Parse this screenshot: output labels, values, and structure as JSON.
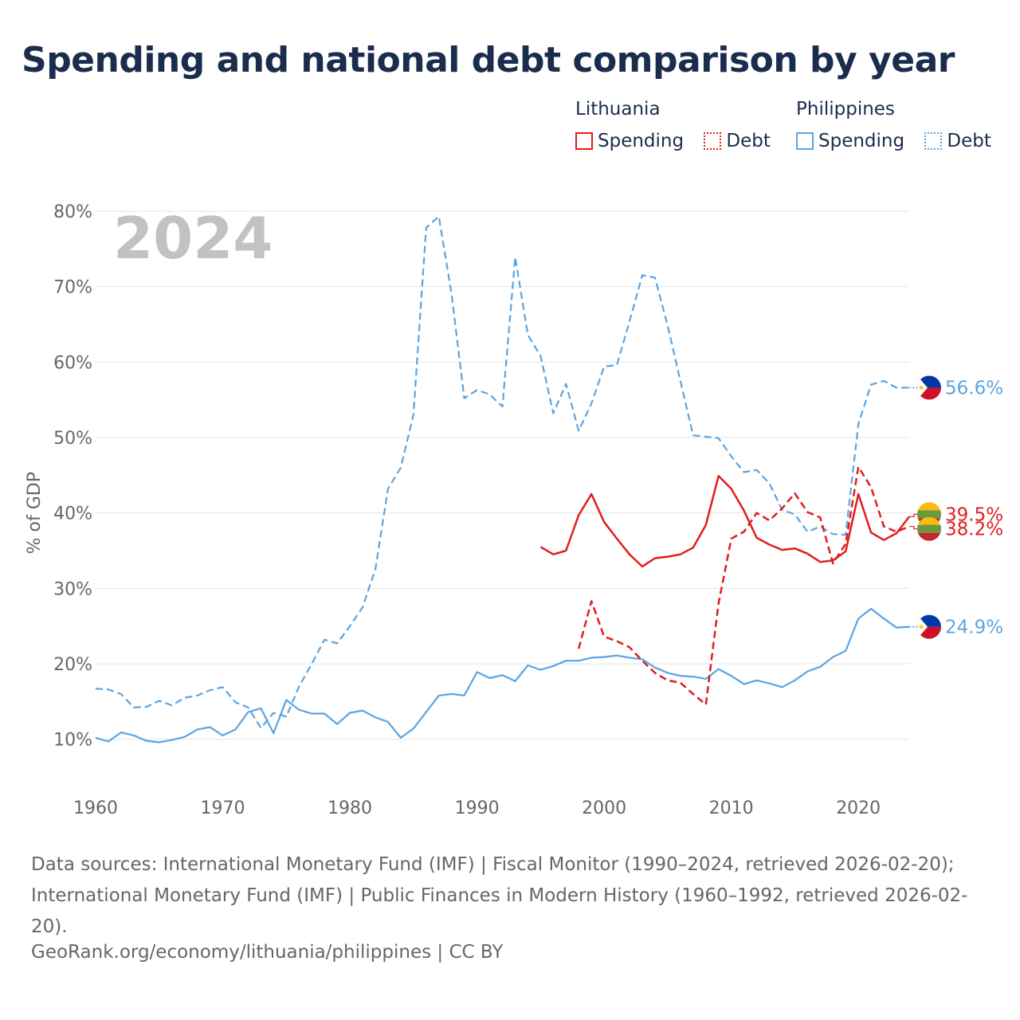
{
  "title": "Spending and national debt comparison by year",
  "legend": {
    "groups": [
      {
        "name": "Lithuania",
        "items": [
          {
            "label": "Spending",
            "style": "solid",
            "color": "#e01e1e"
          },
          {
            "label": "Debt",
            "style": "dashed",
            "color": "#e01e1e"
          }
        ]
      },
      {
        "name": "Philippines",
        "items": [
          {
            "label": "Spending",
            "style": "solid",
            "color": "#5aa4e2"
          },
          {
            "label": "Debt",
            "style": "dashed",
            "color": "#5aa4e2"
          }
        ]
      }
    ]
  },
  "chart_data": {
    "type": "line",
    "year_label": "2024",
    "ylabel": "% of GDP",
    "xlim": [
      1960,
      2024
    ],
    "ylim": [
      5,
      80
    ],
    "x_ticks": [
      "1960",
      "1970",
      "1980",
      "1990",
      "2000",
      "2010",
      "2020"
    ],
    "y_ticks": [
      "10%",
      "20%",
      "30%",
      "40%",
      "50%",
      "60%",
      "70%",
      "80%"
    ],
    "grid": true,
    "series": [
      {
        "name": "Philippines Debt",
        "country": "Philippines",
        "metric": "Debt",
        "style": "dashed",
        "color": "#5aa4e2",
        "start_year": 1960,
        "values": [
          16.7,
          16.6,
          16.0,
          14.2,
          14.3,
          15.1,
          14.5,
          15.5,
          15.8,
          16.5,
          16.9,
          14.9,
          14.2,
          11.5,
          13.5,
          13.0,
          17.0,
          20.0,
          23.2,
          22.7,
          25.0,
          27.5,
          32.5,
          43.2,
          46.0,
          53.0,
          77.8,
          79.3,
          69.0,
          55.2,
          56.3,
          55.7,
          54.1,
          73.9,
          63.6,
          60.8,
          53.2,
          57.1,
          50.9,
          54.5,
          59.4,
          59.6,
          65.4,
          71.5,
          71.2,
          64.8,
          57.5,
          50.3,
          50.1,
          49.9,
          47.5,
          45.4,
          45.7,
          43.9,
          40.4,
          39.8,
          37.5,
          38.2,
          37.2,
          37.1,
          51.8,
          57.0,
          57.5,
          56.6,
          56.6
        ]
      },
      {
        "name": "Philippines Spending",
        "country": "Philippines",
        "metric": "Spending",
        "style": "solid",
        "color": "#5aa4e2",
        "start_year": 1960,
        "values": [
          10.2,
          9.7,
          10.9,
          10.5,
          9.8,
          9.6,
          9.9,
          10.3,
          11.3,
          11.6,
          10.5,
          11.3,
          13.6,
          14.1,
          10.8,
          15.2,
          13.9,
          13.4,
          13.4,
          12.0,
          13.5,
          13.8,
          12.9,
          12.3,
          10.2,
          11.4,
          13.6,
          15.8,
          16.0,
          15.8,
          18.9,
          18.1,
          18.5,
          17.7,
          19.8,
          19.2,
          19.7,
          20.4,
          20.4,
          20.8,
          20.9,
          21.1,
          20.8,
          20.6,
          19.5,
          18.8,
          18.4,
          18.3,
          18.0,
          19.3,
          18.4,
          17.3,
          17.8,
          17.4,
          16.9,
          17.8,
          19.0,
          19.6,
          20.9,
          21.7,
          26.0,
          27.3,
          26.0,
          24.8,
          24.9
        ]
      },
      {
        "name": "Lithuania Spending",
        "country": "Lithuania",
        "metric": "Spending",
        "style": "solid",
        "color": "#e01e1e",
        "start_year": 1995,
        "values": [
          35.5,
          34.5,
          35.0,
          39.7,
          42.5,
          38.8,
          36.6,
          34.5,
          32.9,
          34.0,
          34.2,
          34.5,
          35.4,
          38.4,
          44.9,
          43.2,
          40.3,
          36.7,
          35.8,
          35.1,
          35.3,
          34.6,
          33.5,
          33.7,
          34.9,
          42.5,
          37.4,
          36.4,
          37.3,
          39.5
        ]
      },
      {
        "name": "Lithuania Debt",
        "country": "Lithuania",
        "metric": "Debt",
        "style": "dashed",
        "color": "#e01e1e",
        "start_year": 1998,
        "values": [
          22.0,
          28.3,
          23.6,
          23.0,
          22.2,
          20.4,
          18.8,
          17.8,
          17.5,
          16.0,
          14.6,
          28.0,
          36.6,
          37.5,
          40.0,
          39.0,
          40.6,
          42.6,
          40.1,
          39.4,
          33.3,
          35.9,
          46.1,
          43.4,
          38.2,
          37.5,
          38.2
        ]
      }
    ],
    "end_labels": [
      {
        "series": "Philippines Debt",
        "text": "56.6%",
        "value": 56.6
      },
      {
        "series": "Lithuania Spending",
        "text": "39.5%",
        "value": 39.5
      },
      {
        "series": "Lithuania Debt",
        "text": "38.2%",
        "value": 38.2
      },
      {
        "series": "Philippines Spending",
        "text": "24.9%",
        "value": 24.9
      }
    ]
  },
  "footer": {
    "sources": "Data sources: International Monetary Fund (IMF) | Fiscal Monitor (1990–2024, retrieved 2026-02-20); International Monetary Fund (IMF) | Public Finances in Modern History (1960–1992, retrieved 2026-02-20).",
    "credit": "GeoRank.org/economy/lithuania/philippines | CC BY"
  }
}
